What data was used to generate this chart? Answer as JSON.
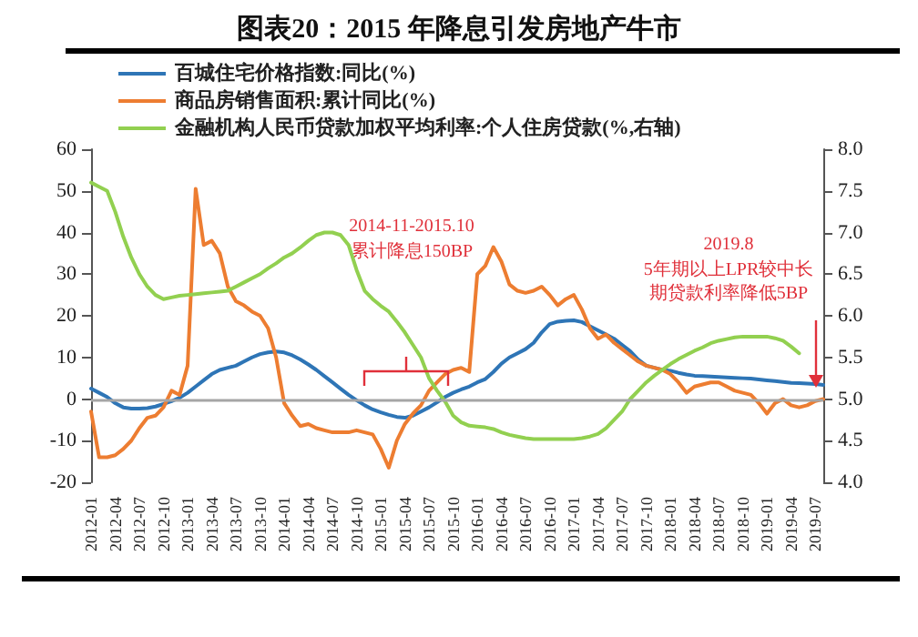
{
  "chart_data": {
    "type": "line",
    "title": "图表20：2015 年降息引发房地产牛市",
    "categories": [
      "2012-01",
      null,
      null,
      "2012-04",
      null,
      null,
      "2012-07",
      null,
      null,
      "2012-10",
      null,
      null,
      "2013-01",
      null,
      null,
      "2013-04",
      null,
      null,
      "2013-07",
      null,
      null,
      "2013-10",
      null,
      null,
      "2014-01",
      null,
      null,
      "2014-04",
      null,
      null,
      "2014-07",
      null,
      null,
      "2014-10",
      null,
      null,
      "2015-01",
      null,
      null,
      "2015-04",
      null,
      null,
      "2015-07",
      null,
      null,
      "2015-10",
      null,
      null,
      "2016-01",
      null,
      null,
      "2016-04",
      null,
      null,
      "2016-07",
      null,
      null,
      "2016-10",
      null,
      null,
      "2017-01",
      null,
      null,
      "2017-04",
      null,
      null,
      "2017-07",
      null,
      null,
      "2017-10",
      null,
      null,
      "2018-01",
      null,
      null,
      "2018-04",
      null,
      null,
      "2018-07",
      null,
      null,
      "2018-10",
      null,
      null,
      "2019-01",
      null,
      null,
      "2019-04",
      null,
      null,
      "2019-07",
      null
    ],
    "series": [
      {
        "name": "百城住宅价格指数:同比(%)",
        "color": "#2e75b6",
        "values": [
          2.5,
          1.5,
          0.5,
          -1,
          -2,
          -2.3,
          -2.3,
          -2.2,
          -1.8,
          -1.2,
          -0.5,
          0.3,
          1.5,
          3,
          4.5,
          6,
          7,
          7.5,
          8,
          9,
          10,
          10.8,
          11.2,
          11.4,
          11.2,
          10.5,
          9.5,
          8.3,
          7,
          5.5,
          4,
          2.5,
          1,
          -0.3,
          -1.5,
          -2.5,
          -3.2,
          -3.8,
          -4.3,
          -4.5,
          -4,
          -3,
          -2,
          -0.8,
          0.5,
          1.5,
          2.3,
          3,
          4,
          4.8,
          6.5,
          8.5,
          10,
          11,
          12,
          13.5,
          16,
          18,
          18.6,
          18.8,
          18.9,
          18.5,
          17.5,
          16.5,
          15.5,
          14.5,
          13,
          11.5,
          9.5,
          8,
          7.5,
          7,
          6.8,
          6.3,
          5.9,
          5.6,
          5.5,
          5.4,
          5.3,
          5.2,
          5.1,
          5,
          4.9,
          4.7,
          4.5,
          4.3,
          4.1,
          3.9,
          3.8,
          3.7,
          3.6,
          3.4
        ]
      },
      {
        "name": "商品房销售面积:累计同比(%)",
        "color": "#ed7d31",
        "values": [
          -3,
          -14,
          -14,
          -13.5,
          -12,
          -10,
          -7,
          -4.5,
          -4,
          -2,
          2,
          1,
          8,
          50.5,
          37,
          38,
          35,
          27,
          23.5,
          22.5,
          21,
          20,
          17,
          10,
          -1,
          -4,
          -6.5,
          -6,
          -7,
          -7.5,
          -8,
          -8,
          -8,
          -7.5,
          -8,
          -8.5,
          -12,
          -16.5,
          -10,
          -6,
          -3.5,
          -1.5,
          2,
          4,
          6,
          7,
          7.5,
          6.5,
          30,
          32,
          36.5,
          33,
          27.5,
          26,
          25.5,
          26,
          27,
          25,
          22.5,
          24,
          25,
          21.5,
          17,
          14.5,
          15.5,
          13.5,
          12,
          10.5,
          9,
          8,
          7.5,
          7,
          6,
          4,
          1.5,
          3,
          3.5,
          4,
          4,
          3,
          2,
          1.5,
          1,
          -1,
          -3.5,
          -1,
          0,
          -1.5,
          -2,
          -1.5,
          -0.5,
          0
        ]
      },
      {
        "name": "金融机构人民币贷款加权平均利率:个人住房贷款(%,右轴)",
        "color": "#92d050",
        "axis": "y2",
        "values": [
          7.6,
          7.55,
          7.5,
          7.25,
          6.95,
          6.7,
          6.5,
          6.35,
          6.25,
          6.2,
          6.22,
          6.24,
          6.25,
          6.26,
          6.27,
          6.28,
          6.29,
          6.3,
          6.35,
          6.4,
          6.45,
          6.5,
          6.57,
          6.63,
          6.7,
          6.75,
          6.82,
          6.9,
          6.97,
          7,
          7,
          6.97,
          6.85,
          6.55,
          6.3,
          6.2,
          6.12,
          6.05,
          5.93,
          5.8,
          5.65,
          5.5,
          5.25,
          5.1,
          4.97,
          4.8,
          4.72,
          4.68,
          4.67,
          4.66,
          4.64,
          4.6,
          4.57,
          4.55,
          4.53,
          4.52,
          4.52,
          4.52,
          4.52,
          4.52,
          4.52,
          4.53,
          4.55,
          4.58,
          4.65,
          4.75,
          4.85,
          5,
          5.1,
          5.2,
          5.28,
          5.35,
          5.42,
          5.48,
          5.53,
          5.58,
          5.62,
          5.67,
          5.7,
          5.72,
          5.74,
          5.75,
          5.75,
          5.75,
          5.75,
          5.73,
          5.7,
          5.63,
          5.55,
          null,
          null,
          null
        ]
      }
    ],
    "ylim": [
      -20,
      60
    ],
    "yticks": [
      -20,
      -10,
      0,
      10,
      20,
      30,
      40,
      50,
      60
    ],
    "y2lim": [
      4,
      8
    ],
    "y2ticks": [
      {
        "value": 4,
        "label": "4.0"
      },
      4.5,
      {
        "value": 5,
        "label": "5.0"
      },
      5.5,
      {
        "value": 6,
        "label": "6.0"
      },
      6.5,
      {
        "value": 7,
        "label": "7.0"
      },
      7.5,
      {
        "value": 8,
        "label": "8.0"
      }
    ],
    "annotations": [
      "2014-11-2015.10",
      "累计降息150BP",
      "2019.8",
      "5年期以上LPR较中长期贷款利率降低5BP"
    ],
    "ref_lines": [
      {
        "axis": "y",
        "value": 0,
        "color": "#a6a6a6"
      }
    ],
    "legend": "top left",
    "marker": "none",
    "line_style": "solid",
    "grid": false
  }
}
